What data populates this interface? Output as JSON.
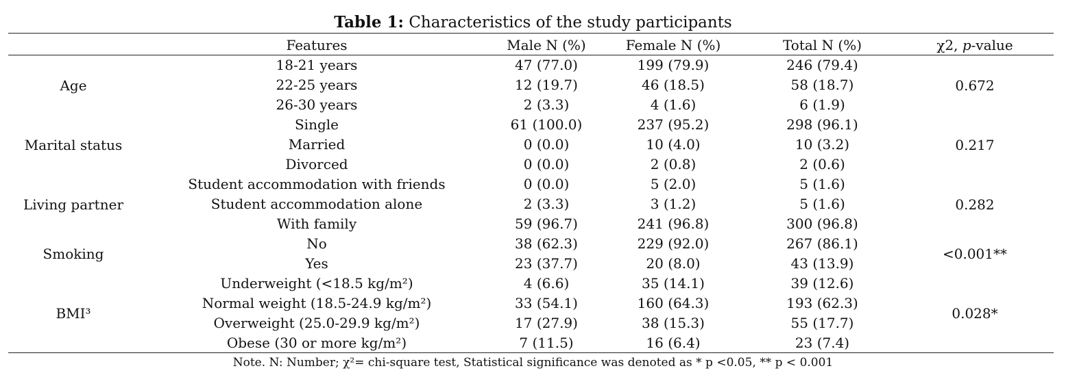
{
  "title": {
    "bold": "Table 1:",
    "rest": " Characteristics of the study participants"
  },
  "header": {
    "features": "Features",
    "male": "Male N (%)",
    "female": "Female N (%)",
    "total": "Total N (%)",
    "stat_prefix": "χ2, ",
    "stat_italic": "p",
    "stat_suffix": "-value"
  },
  "groups": [
    {
      "label": "Age",
      "p_value": "0.672",
      "rows": [
        {
          "feature": "18-21 years",
          "male": "47 (77.0)",
          "female": "199 (79.9)",
          "total": "246 (79.4)"
        },
        {
          "feature": "22-25 years",
          "male": "12 (19.7)",
          "female": "46 (18.5)",
          "total": "58 (18.7)"
        },
        {
          "feature": "26-30 years",
          "male": "2 (3.3)",
          "female": "4 (1.6)",
          "total": "6 (1.9)"
        }
      ]
    },
    {
      "label": "Marital status",
      "p_value": "0.217",
      "rows": [
        {
          "feature": "Single",
          "male": "61 (100.0)",
          "female": "237 (95.2)",
          "total": "298 (96.1)"
        },
        {
          "feature": "Married",
          "male": "0 (0.0)",
          "female": "10 (4.0)",
          "total": "10 (3.2)"
        },
        {
          "feature": "Divorced",
          "male": "0 (0.0)",
          "female": "2 (0.8)",
          "total": "2 (0.6)"
        }
      ]
    },
    {
      "label": "Living partner",
      "p_value": "0.282",
      "rows": [
        {
          "feature": "Student accommodation with friends",
          "male": "0 (0.0)",
          "female": "5 (2.0)",
          "total": "5 (1.6)"
        },
        {
          "feature": "Student accommodation alone",
          "male": "2 (3.3)",
          "female": "3 (1.2)",
          "total": "5 (1.6)"
        },
        {
          "feature": "With family",
          "male": "59 (96.7)",
          "female": "241 (96.8)",
          "total": "300 (96.8)"
        }
      ]
    },
    {
      "label": "Smoking",
      "p_value": "<0.001**",
      "rows": [
        {
          "feature": "No",
          "male": "38 (62.3)",
          "female": "229 (92.0)",
          "total": "267 (86.1)"
        },
        {
          "feature": "Yes",
          "male": "23 (37.7)",
          "female": "20 (8.0)",
          "total": "43 (13.9)"
        }
      ]
    },
    {
      "label": "BMI³",
      "p_value": "0.028*",
      "rows": [
        {
          "feature": "Underweight (<18.5 kg/m²)",
          "male": "4 (6.6)",
          "female": "35 (14.1)",
          "total": "39 (12.6)"
        },
        {
          "feature": "Normal weight (18.5-24.9 kg/m²)",
          "male": "33 (54.1)",
          "female": "160 (64.3)",
          "total": "193 (62.3)"
        },
        {
          "feature": "Overweight (25.0-29.9 kg/m²)",
          "male": "17 (27.9)",
          "female": "38 (15.3)",
          "total": "55 (17.7)"
        },
        {
          "feature": "Obese (30 or more kg/m²)",
          "male": "7 (11.5)",
          "female": "16 (6.4)",
          "total": "23 (7.4)"
        }
      ]
    }
  ],
  "note": "Note. N: Number; χ²= chi-square test, Statistical significance was denoted as * p <0.05, ** p < 0.001"
}
